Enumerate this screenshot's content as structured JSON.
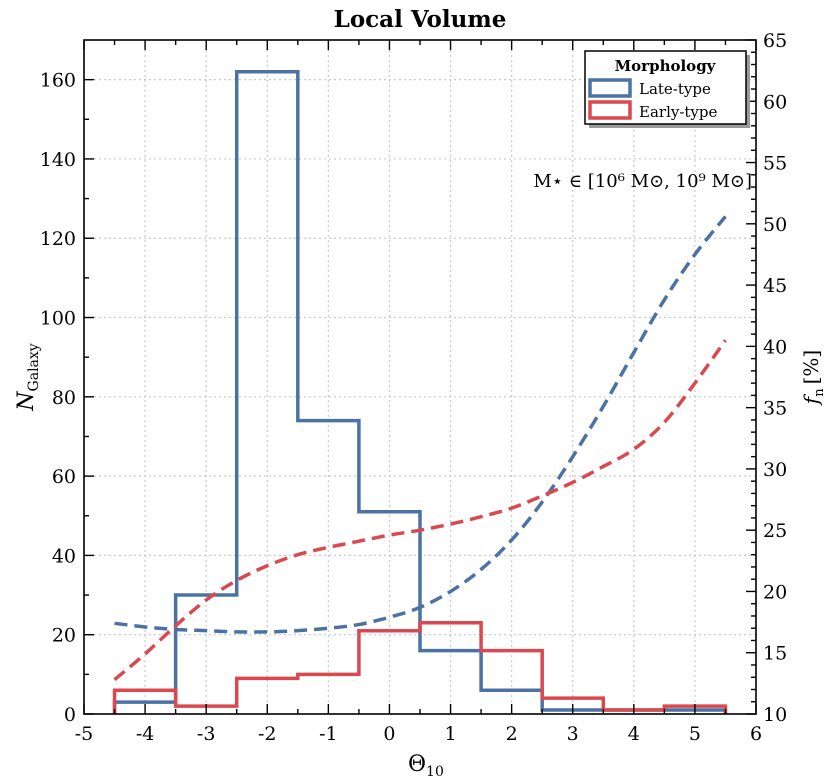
{
  "chart_data": {
    "type": "histogram",
    "title": "Local Volume",
    "xlabel_main": "Θ",
    "xlabel_sub": "10",
    "ylabel_main": "N",
    "ylabel_sub": "Galaxy",
    "y2label_main": "f",
    "y2label_sub": "n",
    "y2label_unit": "[%]",
    "xlim": [
      -5,
      6
    ],
    "ylim": [
      0,
      170
    ],
    "y2lim": [
      10,
      65
    ],
    "xticks": [
      -5,
      -4,
      -3,
      -2,
      -1,
      0,
      1,
      2,
      3,
      4,
      5,
      6
    ],
    "yticks": [
      0,
      20,
      40,
      60,
      80,
      100,
      120,
      140,
      160
    ],
    "y2ticks": [
      10,
      15,
      20,
      25,
      30,
      35,
      40,
      45,
      50,
      55,
      60,
      65
    ],
    "grid": true,
    "annotation": "M⋆ ∈ [10⁶ M⊙, 10⁹ M⊙]",
    "legend": {
      "title": "Morphology",
      "placement": "top-right",
      "entries": [
        "Late-type",
        "Early-type"
      ]
    },
    "bin_edges": [
      -4.5,
      -3.5,
      -2.5,
      -1.5,
      -0.5,
      0.5,
      1.5,
      2.5,
      3.5,
      4.5,
      5.5
    ],
    "series": [
      {
        "name": "Late-type",
        "color": "#4c72a4",
        "histogram_counts": [
          3,
          30,
          162,
          74,
          51,
          16,
          6,
          1,
          1,
          1
        ],
        "fraction_curve_x": [
          -4.5,
          -4.0,
          -3.5,
          -3.0,
          -2.5,
          -2.0,
          -1.5,
          -1.0,
          -0.5,
          0.0,
          0.5,
          1.0,
          1.5,
          2.0,
          2.5,
          3.0,
          3.5,
          4.0,
          4.5,
          5.0,
          5.5
        ],
        "fraction_curve_y": [
          17.4,
          17.1,
          16.9,
          16.8,
          16.7,
          16.7,
          16.8,
          17.0,
          17.3,
          17.9,
          18.7,
          20.0,
          21.8,
          24.2,
          27.3,
          31.0,
          35.1,
          39.5,
          43.8,
          47.5,
          50.6
        ]
      },
      {
        "name": "Early-type",
        "color": "#d9494f",
        "histogram_counts": [
          6,
          2,
          9,
          10,
          21,
          23,
          16,
          4,
          1,
          2
        ],
        "fraction_curve_x": [
          -4.5,
          -4.0,
          -3.5,
          -3.0,
          -2.5,
          -2.0,
          -1.5,
          -1.0,
          -0.5,
          0.0,
          0.5,
          1.0,
          1.5,
          2.0,
          2.5,
          3.0,
          3.5,
          4.0,
          4.5,
          5.0,
          5.5
        ],
        "fraction_curve_y": [
          12.8,
          14.9,
          17.2,
          19.3,
          20.9,
          22.1,
          23.0,
          23.6,
          24.1,
          24.6,
          25.0,
          25.5,
          26.1,
          26.8,
          27.8,
          28.9,
          30.2,
          31.6,
          33.8,
          37.0,
          40.5
        ]
      }
    ]
  }
}
